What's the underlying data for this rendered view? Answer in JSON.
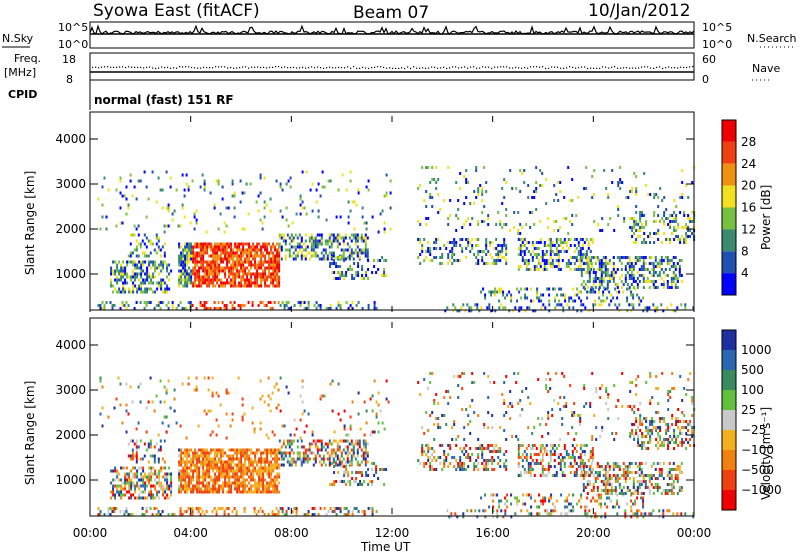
{
  "header": {
    "title": "Syowa East (fitACF)",
    "beam": "Beam 07",
    "date": "10/Jan/2012"
  },
  "status_panel": {
    "nsky_label": "N.Sky",
    "nsearch_label": "N.Search",
    "freq_label_1": "Freq.",
    "freq_label_2": "[MHz]",
    "nave_label": "Nave",
    "cpid_label": "CPID",
    "mode_text": "normal (fast) 151 RF",
    "noise_ticks_left": [
      "10^5",
      "10^0"
    ],
    "noise_ticks_right": [
      "10^5",
      "10^0"
    ],
    "freq_ticks": [
      "18",
      "8"
    ],
    "nave_ticks": [
      "60",
      "0"
    ]
  },
  "chart_data": [
    {
      "type": "heatmap",
      "name": "power",
      "ylabel": "Slant Range [km]",
      "xlabel": "",
      "yticks": [
        "1000",
        "2000",
        "3000",
        "4000"
      ],
      "ylim": [
        200,
        4600
      ],
      "colorbar_label": "Power [dB]",
      "colorbar_ticks": [
        "4",
        "8",
        "12",
        "16",
        "20",
        "24",
        "28"
      ],
      "colors": [
        "#0000ff",
        "#2050b0",
        "#3a8a70",
        "#7ac040",
        "#f0e020",
        "#f09010",
        "#f04010",
        "#f00000"
      ]
    },
    {
      "type": "heatmap",
      "name": "velocity",
      "ylabel": "Slant Range [km]",
      "yticks": [
        "1000",
        "2000",
        "3000",
        "4000"
      ],
      "ylim": [
        200,
        4600
      ],
      "colorbar_label": "Velocity [m s⁻¹]",
      "colorbar_ticks": [
        "1000",
        "500",
        "100",
        "25",
        "−25",
        "−100",
        "−500",
        "−1000"
      ],
      "colors": [
        "#2030a0",
        "#2868b0",
        "#3a8a60",
        "#60c040",
        "#c8c8c8",
        "#f0b020",
        "#f08010",
        "#f04010",
        "#f00000"
      ]
    }
  ],
  "time_axis": {
    "ticks": [
      "00:00",
      "04:00",
      "08:00",
      "12:00",
      "16:00",
      "20:00",
      "00:00"
    ],
    "label": "Time UT"
  }
}
